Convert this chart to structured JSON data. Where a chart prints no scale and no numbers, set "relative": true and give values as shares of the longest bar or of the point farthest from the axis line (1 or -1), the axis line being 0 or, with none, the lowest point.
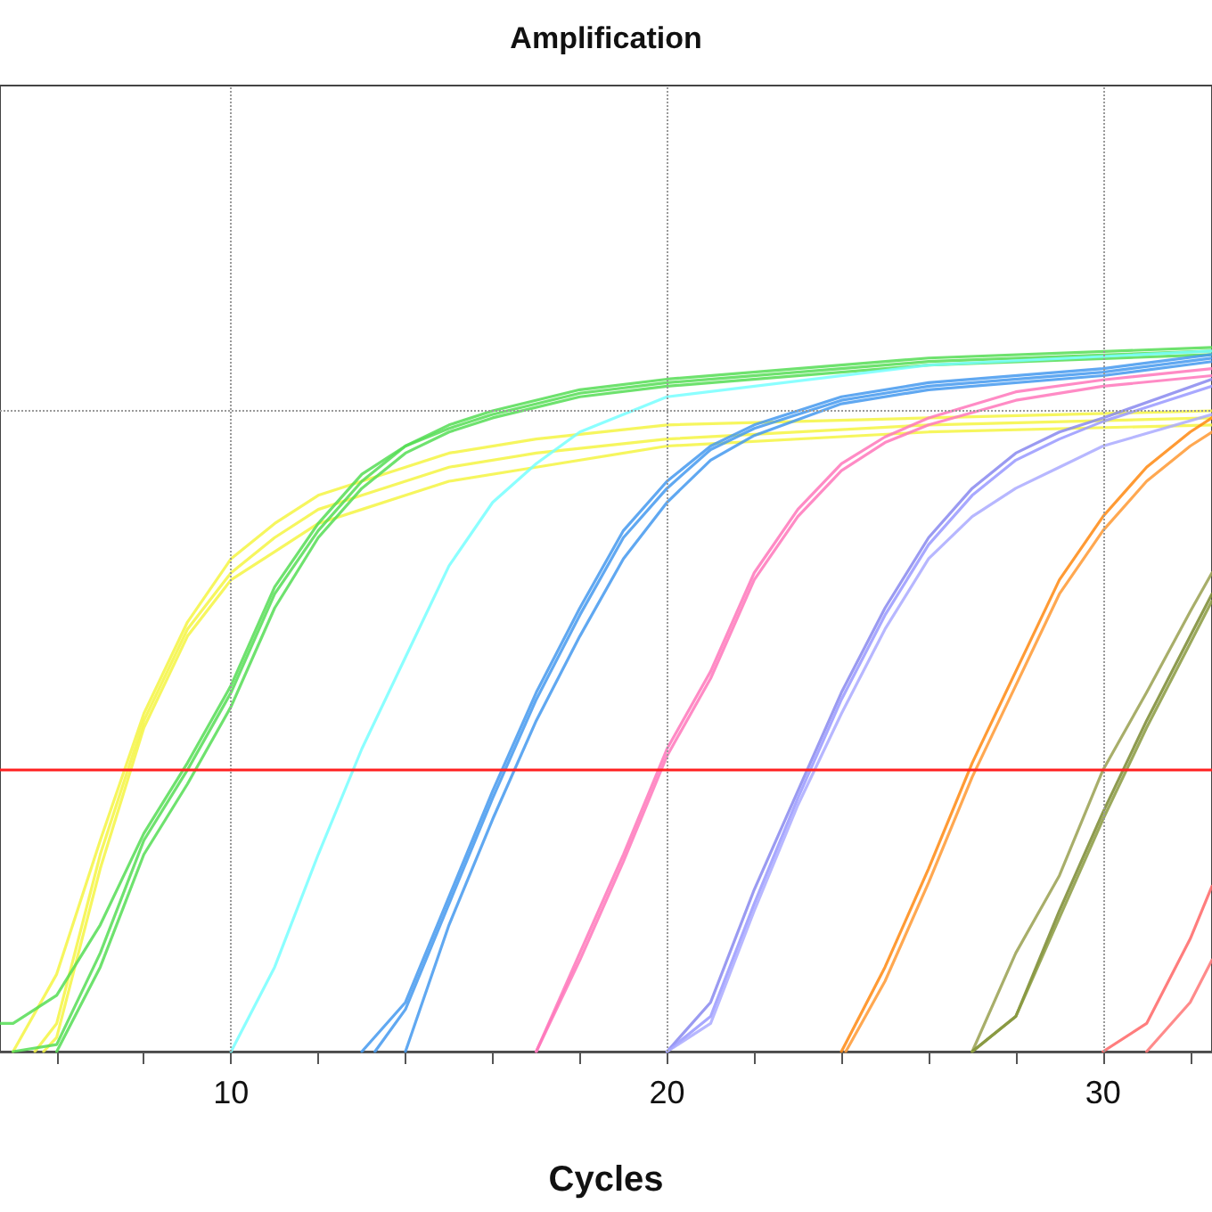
{
  "chart_data": {
    "type": "line",
    "title": "Amplification",
    "xlabel": "Cycles",
    "relative": true,
    "xlim": [
      4.7,
      32.5
    ],
    "xticks": [
      {
        "value": 6,
        "label": null
      },
      {
        "value": 8,
        "label": null
      },
      10,
      {
        "value": 12,
        "label": null
      },
      {
        "value": 14,
        "label": null
      },
      {
        "value": 16,
        "label": null
      },
      {
        "value": 18,
        "label": null
      },
      20,
      {
        "value": 22,
        "label": null
      },
      {
        "value": 24,
        "label": null
      },
      {
        "value": 26,
        "label": null
      },
      {
        "value": 28,
        "label": null
      },
      30,
      {
        "value": 32,
        "label": null
      }
    ],
    "grid": "x",
    "marker": "none",
    "line_style": "solid",
    "ref_lines": [
      {
        "axis": "y",
        "value": 0.4,
        "color": "#ff2020"
      },
      {
        "axis": "y",
        "value": 0.91,
        "color": "#999999",
        "line_style": "dotted"
      }
    ],
    "series": [
      {
        "color": "#f4f442",
        "x": [
          5,
          6,
          7,
          8,
          9,
          10,
          11,
          12,
          13,
          14,
          15,
          17,
          20,
          26,
          32.5
        ],
        "values": [
          0,
          0.11,
          0.3,
          0.48,
          0.61,
          0.7,
          0.75,
          0.79,
          0.81,
          0.83,
          0.85,
          0.87,
          0.89,
          0.9,
          0.91
        ]
      },
      {
        "color": "#f4f442",
        "x": [
          5.5,
          6,
          7,
          8,
          9,
          10,
          11,
          12,
          13,
          14,
          15,
          17,
          20,
          26,
          32.5
        ],
        "values": [
          0,
          0.04,
          0.28,
          0.47,
          0.6,
          0.68,
          0.73,
          0.77,
          0.79,
          0.81,
          0.83,
          0.85,
          0.87,
          0.89,
          0.9
        ]
      },
      {
        "color": "#f4f442",
        "x": [
          5.7,
          6,
          7,
          8,
          9,
          10,
          11,
          12,
          13,
          14,
          15,
          17,
          20,
          26,
          32.5
        ],
        "values": [
          0,
          0.02,
          0.26,
          0.46,
          0.59,
          0.67,
          0.71,
          0.75,
          0.77,
          0.79,
          0.81,
          0.83,
          0.86,
          0.88,
          0.89
        ]
      },
      {
        "color": "#55dd55",
        "x": [
          4.7,
          5,
          6,
          7,
          8,
          9,
          10,
          11,
          12,
          13,
          14,
          15,
          16,
          18,
          20,
          26,
          32.5
        ],
        "values": [
          0.04,
          0.04,
          0.08,
          0.18,
          0.31,
          0.41,
          0.52,
          0.66,
          0.75,
          0.82,
          0.86,
          0.89,
          0.91,
          0.94,
          0.955,
          0.985,
          1.0
        ]
      },
      {
        "color": "#55dd55",
        "x": [
          5,
          6,
          7,
          8,
          9,
          10,
          11,
          12,
          13,
          14,
          15,
          16,
          18,
          20,
          26,
          32.5
        ],
        "values": [
          0,
          0.01,
          0.14,
          0.3,
          0.4,
          0.51,
          0.65,
          0.74,
          0.81,
          0.86,
          0.885,
          0.905,
          0.935,
          0.95,
          0.98,
          0.995
        ]
      },
      {
        "color": "#55dd55",
        "x": [
          6,
          7,
          8,
          9,
          10,
          11,
          12,
          13,
          14,
          15,
          16,
          18,
          20,
          26,
          32.5
        ],
        "values": [
          0,
          0.12,
          0.28,
          0.38,
          0.49,
          0.63,
          0.73,
          0.8,
          0.85,
          0.88,
          0.9,
          0.93,
          0.945,
          0.975,
          0.99
        ]
      },
      {
        "color": "#77ffff",
        "x": [
          10,
          11,
          12,
          13,
          14,
          15,
          16,
          17,
          18,
          20,
          26,
          32.5
        ],
        "values": [
          0,
          0.12,
          0.28,
          0.43,
          0.56,
          0.69,
          0.78,
          0.835,
          0.88,
          0.93,
          0.975,
          0.995
        ]
      },
      {
        "color": "#4499ee",
        "x": [
          13,
          14,
          15,
          16,
          17,
          18,
          19,
          20,
          21,
          22,
          24,
          26,
          30,
          32.5
        ],
        "values": [
          0,
          0.07,
          0.22,
          0.37,
          0.51,
          0.63,
          0.74,
          0.81,
          0.86,
          0.89,
          0.93,
          0.95,
          0.97,
          0.99
        ]
      },
      {
        "color": "#4499ee",
        "x": [
          13.3,
          14,
          15,
          16,
          17,
          18,
          19,
          20,
          21,
          22,
          24,
          26,
          30,
          32.5
        ],
        "values": [
          0,
          0.06,
          0.21,
          0.36,
          0.5,
          0.62,
          0.73,
          0.8,
          0.855,
          0.885,
          0.925,
          0.945,
          0.965,
          0.985
        ]
      },
      {
        "color": "#4499ee",
        "x": [
          14,
          15,
          16,
          17,
          18,
          19,
          20,
          21,
          22,
          24,
          26,
          30,
          32.5
        ],
        "values": [
          0,
          0.18,
          0.33,
          0.47,
          0.59,
          0.7,
          0.78,
          0.84,
          0.875,
          0.92,
          0.94,
          0.96,
          0.98
        ]
      },
      {
        "color": "#ff77bb",
        "x": [
          17,
          18,
          19,
          20,
          21,
          22,
          23,
          24,
          25,
          26,
          28,
          30,
          32.5
        ],
        "values": [
          0,
          0.14,
          0.28,
          0.43,
          0.54,
          0.68,
          0.77,
          0.835,
          0.873,
          0.9,
          0.937,
          0.954,
          0.97
        ]
      },
      {
        "color": "#ff77bb",
        "x": [
          17,
          18,
          19,
          20,
          21,
          22,
          23,
          24,
          25,
          26,
          28,
          30,
          32.5
        ],
        "values": [
          0,
          0.13,
          0.27,
          0.42,
          0.53,
          0.67,
          0.76,
          0.825,
          0.865,
          0.89,
          0.925,
          0.945,
          0.96
        ]
      },
      {
        "color": "#8888ee",
        "x": [
          20,
          21,
          22,
          23,
          24,
          25,
          26,
          27,
          28,
          29,
          30,
          32.5
        ],
        "values": [
          0,
          0.07,
          0.23,
          0.37,
          0.51,
          0.63,
          0.73,
          0.8,
          0.85,
          0.88,
          0.9,
          0.955
        ]
      },
      {
        "color": "#9999ff",
        "x": [
          20,
          21,
          22,
          23,
          24,
          25,
          26,
          27,
          28,
          29,
          30,
          32.5
        ],
        "values": [
          0,
          0.05,
          0.21,
          0.36,
          0.5,
          0.62,
          0.72,
          0.79,
          0.84,
          0.87,
          0.895,
          0.945
        ]
      },
      {
        "color": "#aaaaff",
        "x": [
          20,
          21,
          22,
          23,
          24,
          25,
          26,
          27,
          28,
          29,
          30,
          32.5
        ],
        "values": [
          0,
          0.04,
          0.2,
          0.35,
          0.48,
          0.6,
          0.7,
          0.76,
          0.8,
          0.83,
          0.86,
          0.905
        ]
      },
      {
        "color": "#ff8811",
        "x": [
          24,
          25,
          26,
          27,
          28,
          29,
          30,
          31,
          32,
          32.5
        ],
        "values": [
          0,
          0.12,
          0.26,
          0.41,
          0.54,
          0.67,
          0.76,
          0.83,
          0.88,
          0.9
        ]
      },
      {
        "color": "#ff9933",
        "x": [
          24.1,
          25,
          26,
          27,
          28,
          29,
          30,
          31,
          32,
          32.5
        ],
        "values": [
          0,
          0.1,
          0.24,
          0.39,
          0.52,
          0.65,
          0.74,
          0.81,
          0.86,
          0.88
        ]
      },
      {
        "color": "#99a050",
        "x": [
          27,
          28,
          29,
          30,
          31,
          32,
          32.5
        ],
        "values": [
          0,
          0.14,
          0.25,
          0.4,
          0.51,
          0.625,
          0.68
        ]
      },
      {
        "color": "#7a8a30",
        "x": [
          27,
          28,
          29,
          30,
          31,
          32,
          32.5
        ],
        "values": [
          0,
          0.05,
          0.2,
          0.34,
          0.47,
          0.59,
          0.65
        ]
      },
      {
        "color": "#8a9a40",
        "x": [
          27,
          28,
          29,
          30,
          31,
          32,
          32.5
        ],
        "values": [
          0,
          0.05,
          0.19,
          0.33,
          0.46,
          0.58,
          0.64
        ]
      },
      {
        "color": "#ff6666",
        "x": [
          30,
          31,
          32,
          32.5
        ],
        "values": [
          0,
          0.04,
          0.16,
          0.235
        ]
      },
      {
        "color": "#ff7777",
        "x": [
          31,
          32,
          32.5
        ],
        "values": [
          0,
          0.07,
          0.13
        ]
      }
    ]
  }
}
